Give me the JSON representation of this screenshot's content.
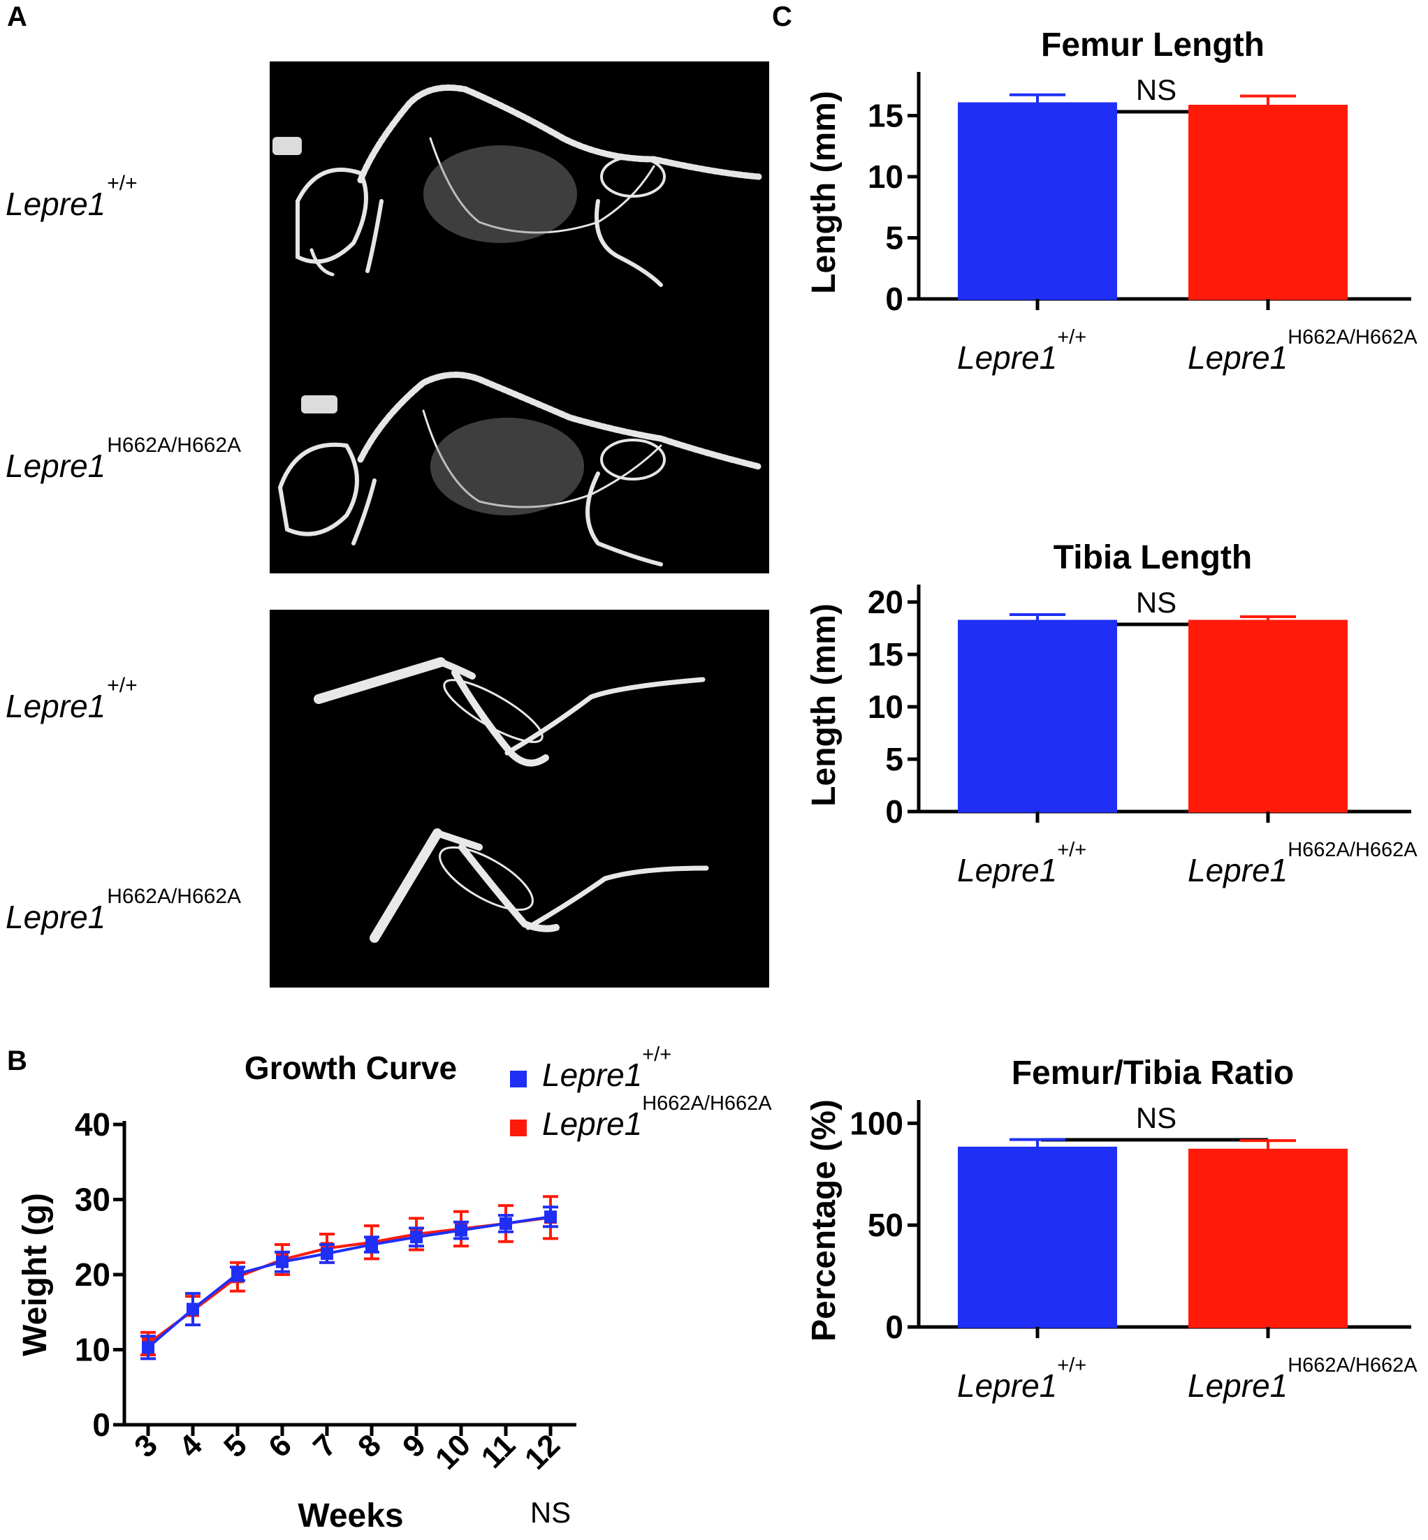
{
  "panels": {
    "a": "A",
    "b": "B",
    "c": "C"
  },
  "genotypes": {
    "wt_base": "Lepre1",
    "wt_sup": "+/+",
    "mut_base": "Lepre1",
    "mut_sup": "H662A/H662A"
  },
  "colors": {
    "wild_type": "#1f2ff5",
    "mutant": "#ff1a0a",
    "xray_background": "#000000"
  },
  "chart_data": [
    {
      "id": "growth_curve",
      "type": "line",
      "title": "Growth Curve",
      "xlabel": "Weeks",
      "ylabel": "Weight (g)",
      "x": [
        3,
        4,
        5,
        6,
        7,
        8,
        9,
        10,
        11,
        12
      ],
      "ylim": [
        0,
        40
      ],
      "yticks": [
        0,
        10,
        20,
        30,
        40
      ],
      "significance": "NS",
      "legend": "top-right",
      "series": [
        {
          "name": "Lepre1 +/+",
          "base": "Lepre1",
          "sup": "+/+",
          "color": "#1f2ff5",
          "values": [
            10.3,
            15.4,
            20.1,
            21.7,
            22.8,
            24.0,
            25.0,
            25.9,
            26.8,
            27.7
          ],
          "errors": [
            1.5,
            2.1,
            0.9,
            1.3,
            1.2,
            1.0,
            1.2,
            1.1,
            1.1,
            1.3
          ]
        },
        {
          "name": "Lepre1 H662A/H662A",
          "base": "Lepre1",
          "sup": "H662A/H662A",
          "color": "#ff1a0a",
          "values": [
            10.8,
            15.2,
            19.7,
            22.0,
            23.5,
            24.3,
            25.4,
            26.1,
            26.8,
            27.6
          ],
          "errors": [
            1.5,
            1.9,
            1.9,
            2.0,
            1.9,
            2.2,
            2.1,
            2.3,
            2.4,
            2.8
          ]
        }
      ]
    },
    {
      "id": "femur_length",
      "type": "bar",
      "title": "Femur Length",
      "ylabel": "Length (mm)",
      "ylim": [
        0,
        18
      ],
      "yticks": [
        0,
        5,
        10,
        15
      ],
      "significance": "NS",
      "categories": [
        {
          "base": "Lepre1",
          "sup": "+/+"
        },
        {
          "base": "Lepre1",
          "sup": "H662A/H662A"
        }
      ],
      "values": [
        16.0,
        15.8
      ],
      "errors": [
        0.7,
        0.8
      ],
      "colors": [
        "#1f2ff5",
        "#ff1a0a"
      ]
    },
    {
      "id": "tibia_length",
      "type": "bar",
      "title": "Tibia Length",
      "ylabel": "Length (mm)",
      "ylim": [
        0,
        21
      ],
      "yticks": [
        0,
        5,
        10,
        15,
        20
      ],
      "significance": "NS",
      "categories": [
        {
          "base": "Lepre1",
          "sup": "+/+"
        },
        {
          "base": "Lepre1",
          "sup": "H662A/H662A"
        }
      ],
      "values": [
        18.2,
        18.2
      ],
      "errors": [
        0.6,
        0.4
      ],
      "colors": [
        "#1f2ff5",
        "#ff1a0a"
      ]
    },
    {
      "id": "femur_tibia_ratio",
      "type": "bar",
      "title": "Femur/Tibia Ratio",
      "ylabel": "Percentage (%)",
      "ylim": [
        0,
        108
      ],
      "yticks": [
        0,
        50,
        100
      ],
      "significance": "NS",
      "categories": [
        {
          "base": "Lepre1",
          "sup": "+/+"
        },
        {
          "base": "Lepre1",
          "sup": "H662A/H662A"
        }
      ],
      "values": [
        88,
        87
      ],
      "errors": [
        4,
        4.5
      ],
      "colors": [
        "#1f2ff5",
        "#ff1a0a"
      ]
    }
  ]
}
